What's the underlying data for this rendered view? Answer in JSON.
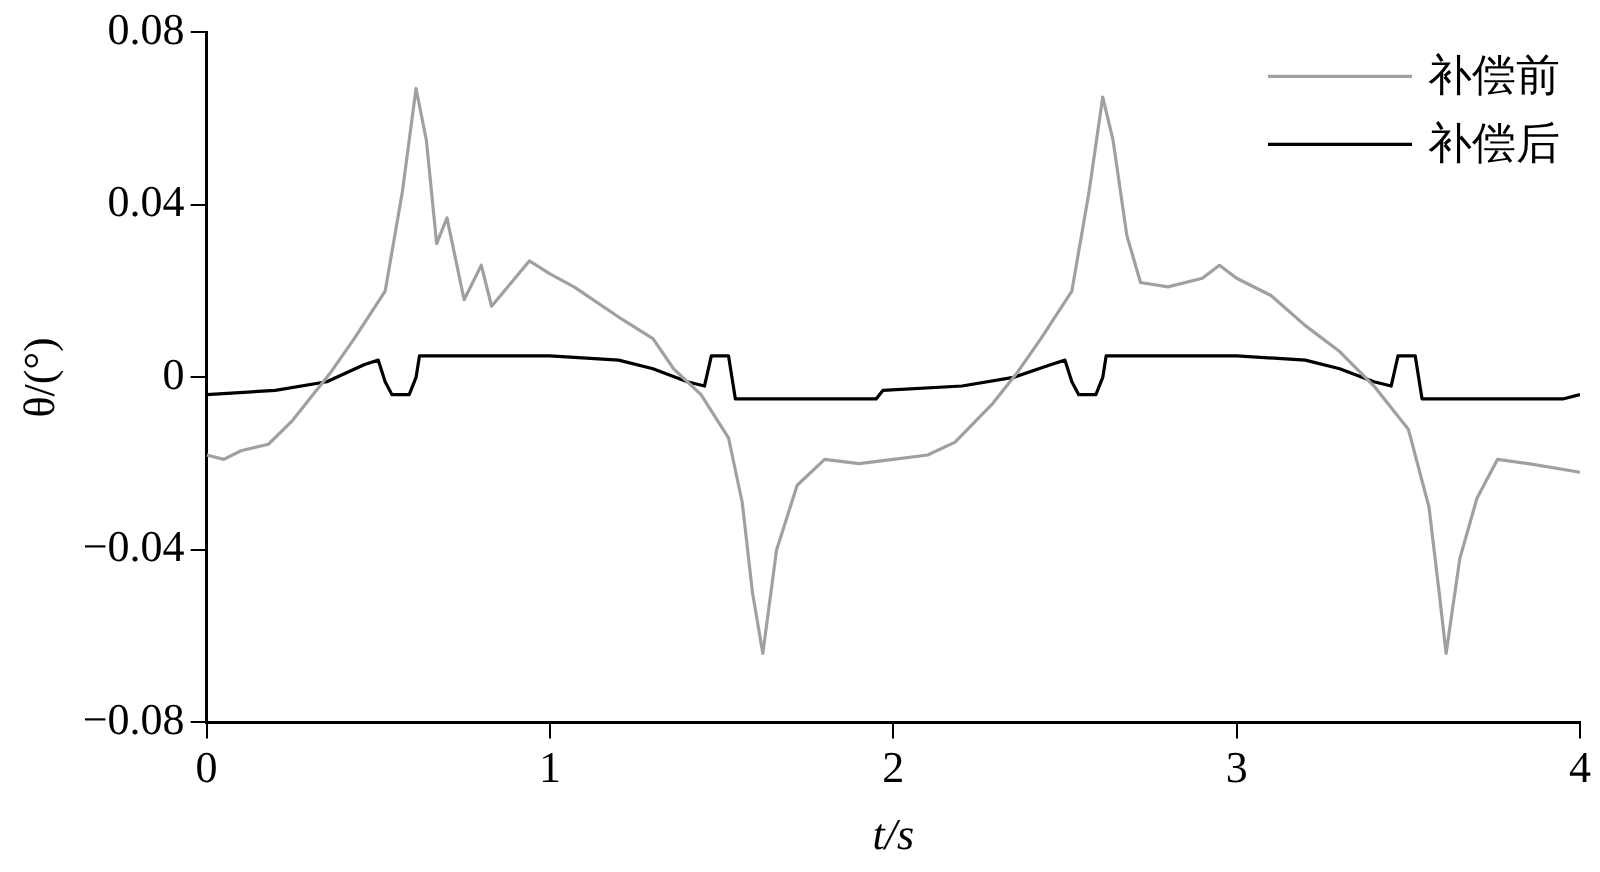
{
  "chart_data": {
    "type": "line",
    "xlabel": "t/s",
    "ylabel": "θ/(°)",
    "xlim": [
      0,
      4
    ],
    "xticks": [
      0,
      1,
      2,
      3,
      4
    ],
    "ylim": [
      -0.08,
      0.08
    ],
    "yticks": [
      {
        "value": -0.08,
        "label": "−0.08"
      },
      {
        "value": -0.04,
        "label": "−0.04"
      },
      0,
      0.04,
      0.08
    ],
    "grid": false,
    "legend": "top right",
    "marker": "none",
    "line_style": "solid",
    "series": [
      {
        "name": "补偿前",
        "color": "#a0a0a0",
        "x": [
          0,
          0.05,
          0.1,
          0.18,
          0.25,
          0.29,
          0.36,
          0.43,
          0.52,
          0.57,
          0.61,
          0.64,
          0.67,
          0.7,
          0.75,
          0.8,
          0.83,
          0.94,
          1.0,
          1.07,
          1.2,
          1.3,
          1.36,
          1.44,
          1.52,
          1.56,
          1.59,
          1.62,
          1.66,
          1.72,
          1.8,
          1.9,
          2.0,
          2.1,
          2.18,
          2.29,
          2.36,
          2.43,
          2.52,
          2.57,
          2.61,
          2.64,
          2.68,
          2.72,
          2.8,
          2.9,
          2.95,
          3.0,
          3.1,
          3.2,
          3.3,
          3.4,
          3.5,
          3.56,
          3.59,
          3.61,
          3.65,
          3.7,
          3.76,
          3.85,
          4.0
        ],
        "values": [
          -0.018,
          -0.019,
          -0.017,
          -0.0155,
          -0.01,
          -0.006,
          0.001,
          0.009,
          0.02,
          0.043,
          0.067,
          0.055,
          0.031,
          0.037,
          0.018,
          0.026,
          0.0165,
          0.027,
          0.024,
          0.021,
          0.014,
          0.009,
          0.002,
          -0.004,
          -0.014,
          -0.029,
          -0.05,
          -0.064,
          -0.04,
          -0.025,
          -0.019,
          -0.02,
          -0.019,
          -0.018,
          -0.015,
          -0.006,
          0.001,
          0.009,
          0.02,
          0.043,
          0.065,
          0.055,
          0.033,
          0.022,
          0.021,
          0.023,
          0.026,
          0.023,
          0.019,
          0.012,
          0.006,
          -0.002,
          -0.012,
          -0.03,
          -0.05,
          -0.064,
          -0.042,
          -0.028,
          -0.019,
          -0.02,
          -0.022
        ]
      },
      {
        "name": "补偿后",
        "color": "#000000",
        "x": [
          0,
          0.2,
          0.35,
          0.46,
          0.5,
          0.52,
          0.54,
          0.59,
          0.61,
          0.62,
          1.0,
          1.2,
          1.3,
          1.4,
          1.45,
          1.47,
          1.52,
          1.54,
          1.95,
          1.97,
          2.2,
          2.35,
          2.46,
          2.5,
          2.52,
          2.54,
          2.59,
          2.61,
          2.62,
          3.0,
          3.2,
          3.3,
          3.4,
          3.45,
          3.47,
          3.52,
          3.54,
          3.95,
          4.0
        ],
        "values": [
          -0.004,
          -0.003,
          -0.001,
          0.003,
          0.004,
          -0.001,
          -0.004,
          -0.004,
          0,
          0.005,
          0.005,
          0.004,
          0.002,
          -0.001,
          -0.002,
          0.005,
          0.005,
          -0.005,
          -0.005,
          -0.003,
          -0.002,
          0,
          0.003,
          0.004,
          -0.001,
          -0.004,
          -0.004,
          0,
          0.005,
          0.005,
          0.004,
          0.002,
          -0.001,
          -0.002,
          0.005,
          0.005,
          -0.005,
          -0.005,
          -0.004
        ]
      }
    ]
  }
}
